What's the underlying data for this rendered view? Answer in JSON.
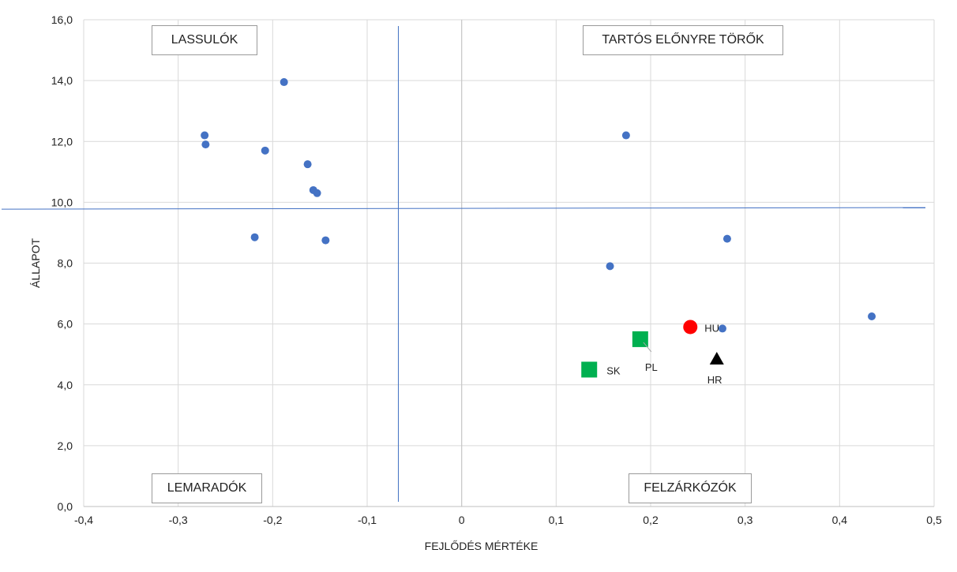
{
  "chart_data": {
    "type": "scatter",
    "title": "",
    "xlabel": "FEJLŐDÉS MÉRTÉKE",
    "ylabel": "ÁLLAPOT",
    "xlim": [
      -0.4,
      0.5
    ],
    "ylim": [
      0,
      16
    ],
    "x_ticks": [
      "-0,4",
      "-0,3",
      "-0,2",
      "-0,1",
      "0",
      "0,1",
      "0,2",
      "0,3",
      "0,4",
      "0,5"
    ],
    "y_ticks": [
      "0,0",
      "2,0",
      "4,0",
      "6,0",
      "8,0",
      "10,0",
      "12,0",
      "14,0",
      "16,0"
    ],
    "grid": true,
    "reference_lines": {
      "x": -0.067,
      "y": 9.8
    },
    "quadrant_labels": {
      "top_left": "LASSULÓK",
      "top_right": "TARTÓS ELŐNYRE TÖRŐK",
      "bottom_left": "LEMARADÓK",
      "bottom_right": "FELZÁRKÓZÓK"
    },
    "series": [
      {
        "marker": "circle",
        "color": "#4472c4",
        "points": [
          {
            "x": -0.272,
            "y": 12.2
          },
          {
            "x": -0.271,
            "y": 11.9
          },
          {
            "x": -0.188,
            "y": 13.95
          },
          {
            "x": -0.208,
            "y": 11.7
          },
          {
            "x": -0.163,
            "y": 11.25
          },
          {
            "x": -0.157,
            "y": 10.4
          },
          {
            "x": -0.153,
            "y": 10.3
          },
          {
            "x": -0.219,
            "y": 8.85
          },
          {
            "x": -0.144,
            "y": 8.75
          },
          {
            "x": 0.174,
            "y": 12.2
          },
          {
            "x": 0.157,
            "y": 7.9
          },
          {
            "x": 0.281,
            "y": 8.8
          },
          {
            "x": 0.276,
            "y": 5.85
          },
          {
            "x": 0.434,
            "y": 6.25
          }
        ]
      }
    ],
    "highlighted": [
      {
        "label": "HU",
        "marker": "circle",
        "color": "#ff0000",
        "x": 0.242,
        "y": 5.9
      },
      {
        "label": "PL",
        "marker": "square",
        "color": "#00b050",
        "x": 0.189,
        "y": 5.5
      },
      {
        "label": "SK",
        "marker": "square",
        "color": "#00b050",
        "x": 0.135,
        "y": 4.5
      },
      {
        "label": "HR",
        "marker": "triangle",
        "color": "#000000",
        "x": 0.27,
        "y": 4.85
      }
    ]
  }
}
